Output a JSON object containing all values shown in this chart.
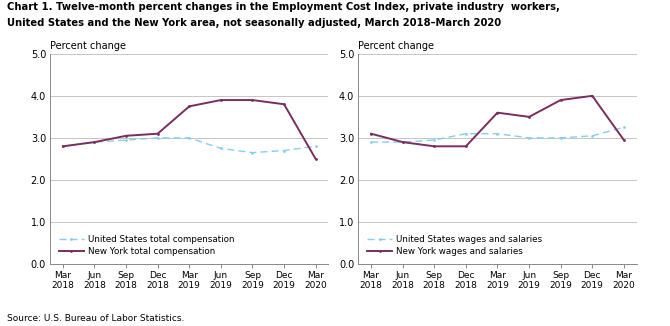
{
  "title_line1": "Chart 1. Twelve-month percent changes in the Employment Cost Index, private industry  workers,",
  "title_line2": "United States and the New York area, not seasonally adjusted, March 2018–March 2020",
  "ylabel": "Percent change",
  "source": "Source: U.S. Bureau of Labor Statistics.",
  "xlabels": [
    "Mar\n2018",
    "Jun\n2018",
    "Sep\n2018",
    "Dec\n2018",
    "Mar\n2019",
    "Jun\n2019",
    "Sep\n2019",
    "Dec\n2019",
    "Mar\n2020"
  ],
  "ylim": [
    0.0,
    5.0
  ],
  "yticks": [
    0.0,
    1.0,
    2.0,
    3.0,
    4.0,
    5.0
  ],
  "left_us_total": [
    2.8,
    2.9,
    2.95,
    3.0,
    3.0,
    2.75,
    2.65,
    2.7,
    2.8
  ],
  "left_ny_total": [
    2.8,
    2.9,
    3.05,
    3.1,
    3.75,
    3.9,
    3.9,
    3.8,
    2.5
  ],
  "right_us_wages": [
    2.9,
    2.9,
    2.95,
    3.1,
    3.1,
    3.0,
    3.0,
    3.05,
    3.25
  ],
  "right_ny_wages": [
    3.1,
    2.9,
    2.8,
    2.8,
    3.6,
    3.5,
    3.9,
    4.0,
    2.95
  ],
  "left_legend1": "United States total compensation",
  "left_legend2": "New York total compensation",
  "right_legend1": "United States wages and salaries",
  "right_legend2": "New York wages and salaries",
  "us_color": "#87CEEB",
  "ny_color": "#7B2D5E",
  "grid_color": "#BBBBBB",
  "background_color": "#FFFFFF"
}
